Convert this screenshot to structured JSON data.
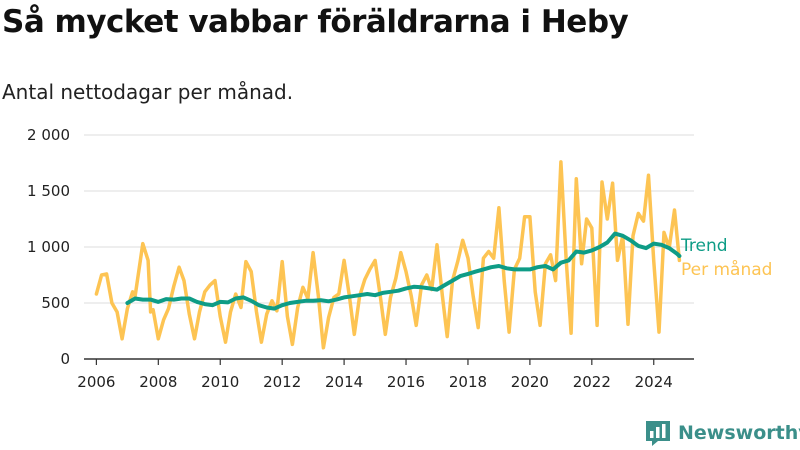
{
  "title": "Så mycket vabbar föräldrarna i Heby",
  "subtitle": "Antal nettodagar per månad.",
  "brand": {
    "name": "Newsworthy",
    "icon": "bar-chart-logo-icon"
  },
  "colors": {
    "trend": "#0e9c86",
    "monthly": "#fdc453",
    "grid": "#dcdcdc",
    "axis": "#333333",
    "brand": "#3b8f8a"
  },
  "chart_data": {
    "type": "line",
    "x_axis": {
      "min": 2005.6,
      "max": 2025.3,
      "ticks": [
        2006,
        2008,
        2010,
        2012,
        2014,
        2016,
        2018,
        2020,
        2022,
        2024
      ]
    },
    "y_axis": {
      "min": 0,
      "max": 2000,
      "ticks": [
        0,
        500,
        1000,
        1500,
        2000
      ],
      "tick_labels": [
        "0",
        "500",
        "1 000",
        "1 500",
        "2 000"
      ]
    },
    "grid": "horizontal",
    "legend": "right-end-labels",
    "series": [
      {
        "name": "Per månad",
        "color": "#fdc453",
        "points": [
          [
            2006.0,
            580
          ],
          [
            2006.17,
            750
          ],
          [
            2006.33,
            760
          ],
          [
            2006.5,
            500
          ],
          [
            2006.67,
            420
          ],
          [
            2006.83,
            180
          ],
          [
            2007.0,
            450
          ],
          [
            2007.17,
            600
          ],
          [
            2007.25,
            560
          ],
          [
            2007.5,
            1030
          ],
          [
            2007.67,
            880
          ],
          [
            2007.75,
            420
          ],
          [
            2007.83,
            440
          ],
          [
            2008.0,
            180
          ],
          [
            2008.17,
            350
          ],
          [
            2008.33,
            450
          ],
          [
            2008.5,
            650
          ],
          [
            2008.67,
            820
          ],
          [
            2008.83,
            700
          ],
          [
            2009.0,
            400
          ],
          [
            2009.17,
            180
          ],
          [
            2009.33,
            420
          ],
          [
            2009.5,
            600
          ],
          [
            2009.67,
            660
          ],
          [
            2009.83,
            700
          ],
          [
            2010.0,
            380
          ],
          [
            2010.17,
            150
          ],
          [
            2010.33,
            420
          ],
          [
            2010.5,
            580
          ],
          [
            2010.67,
            460
          ],
          [
            2010.83,
            870
          ],
          [
            2011.0,
            780
          ],
          [
            2011.17,
            420
          ],
          [
            2011.33,
            150
          ],
          [
            2011.5,
            400
          ],
          [
            2011.67,
            520
          ],
          [
            2011.83,
            430
          ],
          [
            2012.0,
            870
          ],
          [
            2012.17,
            380
          ],
          [
            2012.33,
            130
          ],
          [
            2012.5,
            460
          ],
          [
            2012.67,
            640
          ],
          [
            2012.83,
            540
          ],
          [
            2013.0,
            950
          ],
          [
            2013.17,
            560
          ],
          [
            2013.33,
            100
          ],
          [
            2013.5,
            370
          ],
          [
            2013.67,
            550
          ],
          [
            2013.83,
            580
          ],
          [
            2014.0,
            880
          ],
          [
            2014.17,
            560
          ],
          [
            2014.33,
            220
          ],
          [
            2014.5,
            560
          ],
          [
            2014.67,
            710
          ],
          [
            2014.83,
            800
          ],
          [
            2015.0,
            880
          ],
          [
            2015.17,
            560
          ],
          [
            2015.33,
            220
          ],
          [
            2015.5,
            550
          ],
          [
            2015.67,
            720
          ],
          [
            2015.83,
            950
          ],
          [
            2016.0,
            780
          ],
          [
            2016.17,
            560
          ],
          [
            2016.33,
            300
          ],
          [
            2016.5,
            660
          ],
          [
            2016.67,
            750
          ],
          [
            2016.83,
            620
          ],
          [
            2017.0,
            1020
          ],
          [
            2017.17,
            570
          ],
          [
            2017.33,
            200
          ],
          [
            2017.5,
            700
          ],
          [
            2017.67,
            870
          ],
          [
            2017.83,
            1060
          ],
          [
            2018.0,
            900
          ],
          [
            2018.17,
            560
          ],
          [
            2018.33,
            280
          ],
          [
            2018.5,
            900
          ],
          [
            2018.67,
            960
          ],
          [
            2018.83,
            900
          ],
          [
            2019.0,
            1350
          ],
          [
            2019.17,
            700
          ],
          [
            2019.33,
            240
          ],
          [
            2019.5,
            800
          ],
          [
            2019.67,
            900
          ],
          [
            2019.83,
            1270
          ],
          [
            2020.0,
            1270
          ],
          [
            2020.17,
            600
          ],
          [
            2020.33,
            300
          ],
          [
            2020.5,
            850
          ],
          [
            2020.67,
            930
          ],
          [
            2020.83,
            700
          ],
          [
            2021.0,
            1760
          ],
          [
            2021.17,
            900
          ],
          [
            2021.33,
            230
          ],
          [
            2021.5,
            1610
          ],
          [
            2021.67,
            850
          ],
          [
            2021.83,
            1250
          ],
          [
            2022.0,
            1170
          ],
          [
            2022.17,
            300
          ],
          [
            2022.33,
            1580
          ],
          [
            2022.5,
            1250
          ],
          [
            2022.67,
            1570
          ],
          [
            2022.83,
            880
          ],
          [
            2023.0,
            1100
          ],
          [
            2023.17,
            310
          ],
          [
            2023.33,
            1100
          ],
          [
            2023.5,
            1300
          ],
          [
            2023.67,
            1230
          ],
          [
            2023.83,
            1640
          ],
          [
            2024.0,
            880
          ],
          [
            2024.17,
            240
          ],
          [
            2024.33,
            1130
          ],
          [
            2024.5,
            990
          ],
          [
            2024.67,
            1330
          ],
          [
            2024.83,
            880
          ]
        ]
      },
      {
        "name": "Trend",
        "color": "#0e9c86",
        "points": [
          [
            2007.0,
            500
          ],
          [
            2007.25,
            540
          ],
          [
            2007.5,
            530
          ],
          [
            2007.75,
            530
          ],
          [
            2008.0,
            510
          ],
          [
            2008.25,
            535
          ],
          [
            2008.5,
            530
          ],
          [
            2008.75,
            540
          ],
          [
            2009.0,
            540
          ],
          [
            2009.25,
            510
          ],
          [
            2009.5,
            490
          ],
          [
            2009.75,
            480
          ],
          [
            2010.0,
            510
          ],
          [
            2010.25,
            505
          ],
          [
            2010.5,
            540
          ],
          [
            2010.75,
            550
          ],
          [
            2011.0,
            520
          ],
          [
            2011.25,
            480
          ],
          [
            2011.5,
            460
          ],
          [
            2011.75,
            450
          ],
          [
            2012.0,
            480
          ],
          [
            2012.25,
            500
          ],
          [
            2012.5,
            510
          ],
          [
            2012.75,
            520
          ],
          [
            2013.0,
            520
          ],
          [
            2013.25,
            525
          ],
          [
            2013.5,
            515
          ],
          [
            2013.75,
            530
          ],
          [
            2014.0,
            550
          ],
          [
            2014.25,
            560
          ],
          [
            2014.5,
            570
          ],
          [
            2014.75,
            580
          ],
          [
            2015.0,
            570
          ],
          [
            2015.25,
            590
          ],
          [
            2015.5,
            600
          ],
          [
            2015.75,
            610
          ],
          [
            2016.0,
            630
          ],
          [
            2016.25,
            645
          ],
          [
            2016.5,
            640
          ],
          [
            2016.75,
            630
          ],
          [
            2017.0,
            620
          ],
          [
            2017.25,
            660
          ],
          [
            2017.5,
            700
          ],
          [
            2017.75,
            740
          ],
          [
            2018.0,
            760
          ],
          [
            2018.25,
            780
          ],
          [
            2018.5,
            800
          ],
          [
            2018.75,
            820
          ],
          [
            2019.0,
            830
          ],
          [
            2019.25,
            810
          ],
          [
            2019.5,
            800
          ],
          [
            2019.75,
            800
          ],
          [
            2020.0,
            800
          ],
          [
            2020.25,
            820
          ],
          [
            2020.5,
            830
          ],
          [
            2020.75,
            800
          ],
          [
            2021.0,
            860
          ],
          [
            2021.25,
            880
          ],
          [
            2021.5,
            960
          ],
          [
            2021.75,
            950
          ],
          [
            2022.0,
            970
          ],
          [
            2022.25,
            1000
          ],
          [
            2022.5,
            1040
          ],
          [
            2022.75,
            1120
          ],
          [
            2023.0,
            1100
          ],
          [
            2023.25,
            1060
          ],
          [
            2023.5,
            1010
          ],
          [
            2023.75,
            990
          ],
          [
            2024.0,
            1030
          ],
          [
            2024.25,
            1020
          ],
          [
            2024.5,
            990
          ],
          [
            2024.75,
            940
          ],
          [
            2024.83,
            920
          ]
        ]
      }
    ]
  }
}
